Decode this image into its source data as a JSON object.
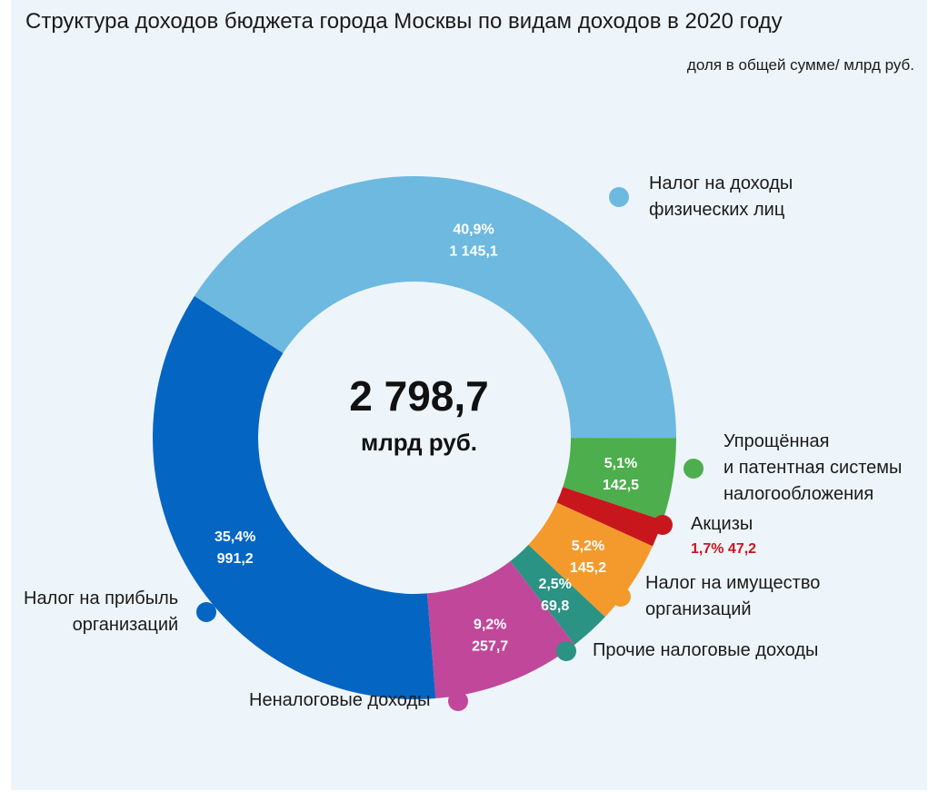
{
  "title": "Структура доходов бюджета города Москвы по видам доходов в 2020 году",
  "units": "доля в общей сумме/ млрд руб.",
  "center": {
    "total": "2 798,7",
    "unit": "млрд руб."
  },
  "chart_data": {
    "type": "pie",
    "title": "Структура доходов бюджета города Москвы по видам доходов в 2020 году",
    "subtitle": "доля в общей сумме/ млрд руб.",
    "total": 2798.7,
    "slices": [
      {
        "name": "Налог на доходы физических лиц",
        "share": 40.9,
        "value": 1145.1,
        "share_label": "40,9%",
        "value_label": "1 145,1",
        "color": "#6db9e0"
      },
      {
        "name": "Упрощённая и патентная системы налогообложения",
        "share": 5.1,
        "value": 142.5,
        "share_label": "5,1%",
        "value_label": "142,5",
        "color": "#4cae4c"
      },
      {
        "name": "Акцизы",
        "share": 1.7,
        "value": 47.2,
        "share_label": "1,7%",
        "value_label": "47,2",
        "color": "#c8171c"
      },
      {
        "name": "Налог на имущество организаций",
        "share": 5.2,
        "value": 145.2,
        "share_label": "5,2%",
        "value_label": "145,2",
        "color": "#f49a2c"
      },
      {
        "name": "Прочие налоговые доходы",
        "share": 2.5,
        "value": 69.8,
        "share_label": "2,5%",
        "value_label": "69,8",
        "color": "#2a9383"
      },
      {
        "name": "Неналоговые доходы",
        "share": 9.2,
        "value": 257.7,
        "share_label": "9,2%",
        "value_label": "257,7",
        "color": "#c1479a"
      },
      {
        "name": "Налог на прибыль организаций",
        "share": 35.4,
        "value": 991.2,
        "share_label": "35,4%",
        "value_label": "991,2",
        "color": "#0565c2"
      }
    ]
  },
  "legend": {
    "ndfl": [
      "Налог на доходы",
      "физических лиц"
    ],
    "usn": [
      "Упрощённая",
      "и патентная системы",
      "налогообложения"
    ],
    "akcizy": [
      "Акцизы"
    ],
    "akcizy_values": "1,7%  47,2",
    "imush": [
      "Налог на имущество",
      "организаций"
    ],
    "prochie": [
      "Прочие налоговые доходы"
    ],
    "nenalog": [
      "Неналоговые доходы"
    ],
    "pribyl": [
      "Налог на прибыль",
      "организаций"
    ]
  }
}
